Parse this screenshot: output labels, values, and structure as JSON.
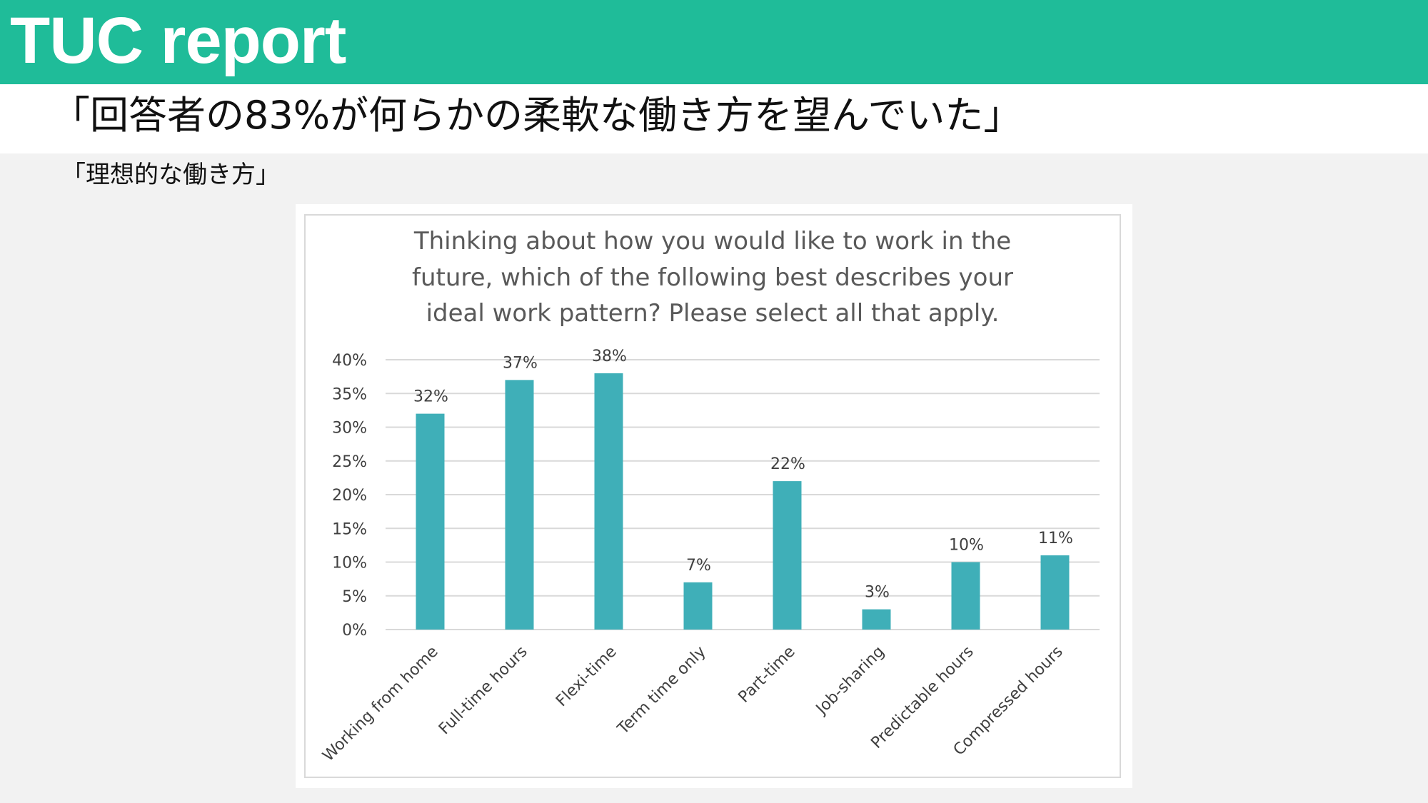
{
  "header": {
    "title": "TUC report"
  },
  "subtitle": "「回答者の83%が何らかの柔軟な働き方を望んでいた」",
  "section_label": "「理想的な働き方」",
  "colors": {
    "header": "#1fbc99",
    "bar": "#3fafb8",
    "grid": "#d9d9d9"
  },
  "chart_data": {
    "type": "bar",
    "title_lines": [
      "Thinking about how you would like to work in the",
      "future, which of the following best describes your",
      "ideal work pattern? Please select all that apply."
    ],
    "categories": [
      "Working from home",
      "Full-time hours",
      "Flexi-time",
      "Term time only",
      "Part-time",
      "Job-sharing",
      "Predictable hours",
      "Compressed hours"
    ],
    "values": [
      32,
      37,
      38,
      7,
      22,
      3,
      10,
      11
    ],
    "data_labels": [
      "32%",
      "37%",
      "38%",
      "7%",
      "22%",
      "3%",
      "10%",
      "11%"
    ],
    "y_ticks": [
      0,
      5,
      10,
      15,
      20,
      25,
      30,
      35,
      40
    ],
    "y_tick_labels": [
      "0%",
      "5%",
      "10%",
      "15%",
      "20%",
      "25%",
      "30%",
      "35%",
      "40%"
    ],
    "ylim": [
      0,
      40
    ],
    "grid": true,
    "legend": "none",
    "xlabel": "",
    "ylabel": ""
  }
}
